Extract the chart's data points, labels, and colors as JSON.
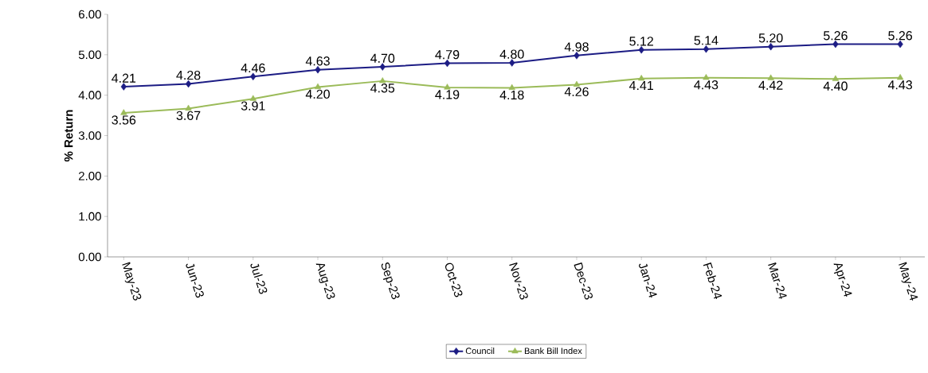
{
  "chart_data": {
    "type": "line",
    "ylabel": "% Return",
    "categories": [
      "May-23",
      "Jun-23",
      "Jul-23",
      "Aug-23",
      "Sep-23",
      "Oct-23",
      "Nov-23",
      "Dec-23",
      "Jan-24",
      "Feb-24",
      "Mar-24",
      "Apr-24",
      "May-24"
    ],
    "series": [
      {
        "name": "Council",
        "color": "#1c1c84",
        "marker": "diamond",
        "values": [
          4.21,
          4.28,
          4.46,
          4.63,
          4.7,
          4.79,
          4.8,
          4.98,
          5.12,
          5.14,
          5.2,
          5.26,
          5.26
        ],
        "value_labels": [
          "4.21",
          "4.28",
          "4.46",
          "4.63",
          "4.70",
          "4.79",
          "4.80",
          "4.98",
          "5.12",
          "5.14",
          "5.20",
          "5.26",
          "5.26"
        ]
      },
      {
        "name": "Bank Bill Index",
        "color": "#9bbb59",
        "marker": "triangle",
        "values": [
          3.56,
          3.67,
          3.91,
          4.2,
          4.35,
          4.19,
          4.18,
          4.26,
          4.41,
          4.43,
          4.42,
          4.4,
          4.43
        ],
        "value_labels": [
          "3.56",
          "3.67",
          "3.91",
          "4.20",
          "4.35",
          "4.19",
          "4.18",
          "4.26",
          "4.41",
          "4.43",
          "4.42",
          "4.40",
          "4.43"
        ]
      }
    ],
    "ylim": [
      0,
      6
    ],
    "yticks": [
      {
        "value": 0,
        "label": "0.00"
      },
      {
        "value": 1,
        "label": "1.00"
      },
      {
        "value": 2,
        "label": "2.00"
      },
      {
        "value": 3,
        "label": "3.00"
      },
      {
        "value": 4,
        "label": "4.00"
      },
      {
        "value": 5,
        "label": "5.00"
      },
      {
        "value": 6,
        "label": "6.00"
      }
    ],
    "legend": "bottom",
    "grid": false
  }
}
